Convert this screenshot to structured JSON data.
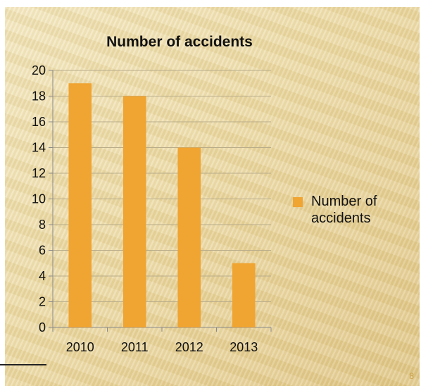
{
  "slide": {
    "page_number": "8"
  },
  "chart_data": {
    "type": "bar",
    "title": "Number of accidents",
    "categories": [
      "2010",
      "2011",
      "2012",
      "2013"
    ],
    "series": [
      {
        "name": "Number of accidents",
        "values": [
          19,
          18,
          14,
          5
        ]
      }
    ],
    "ylim": [
      0,
      20
    ],
    "yticks": [
      0,
      2,
      4,
      6,
      8,
      10,
      12,
      14,
      16,
      18,
      20
    ],
    "grid": true,
    "legend": "right",
    "bar_color": "#f0a431",
    "grid_color": "#b9ad8a"
  }
}
